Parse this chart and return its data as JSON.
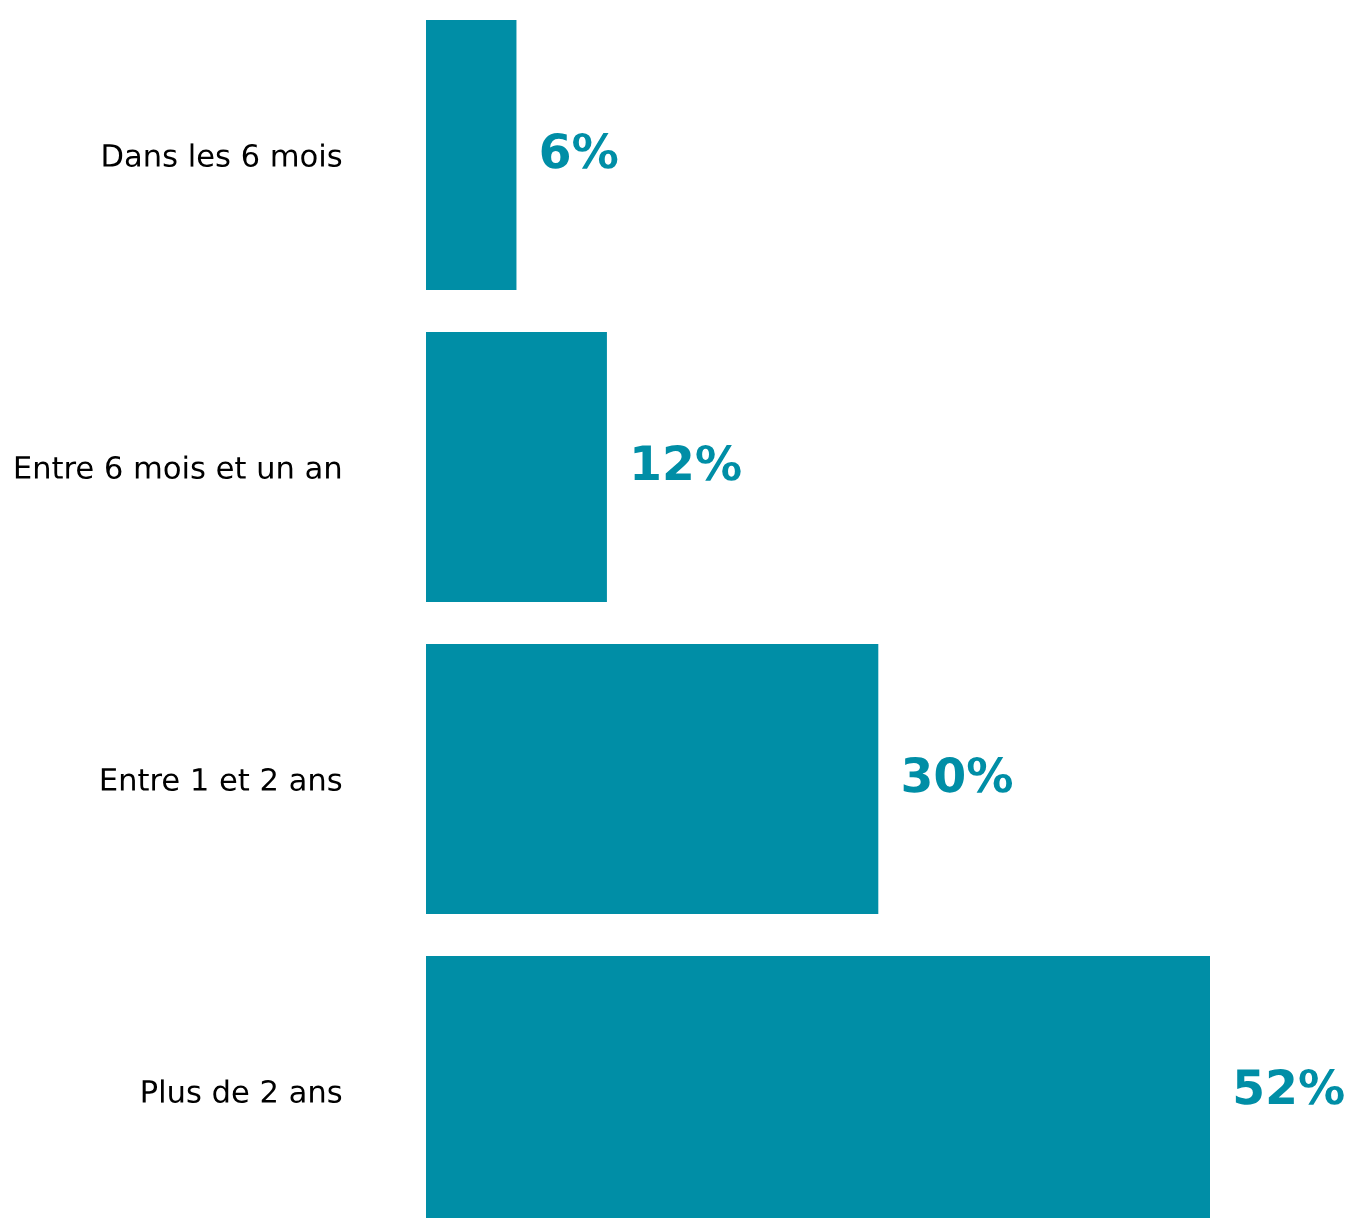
{
  "chart_data": {
    "type": "bar",
    "orientation": "horizontal",
    "categories": [
      "Dans les 6 mois",
      "Entre 6 mois et un an",
      "Entre 1 et 2 ans",
      "Plus de 2 ans"
    ],
    "values": [
      6,
      12,
      30,
      52
    ],
    "color": "#008ea6",
    "value_labels": [
      "6%",
      "12%",
      "30%",
      "52%"
    ],
    "grid": false,
    "legend": false,
    "tick_labels": "y"
  }
}
